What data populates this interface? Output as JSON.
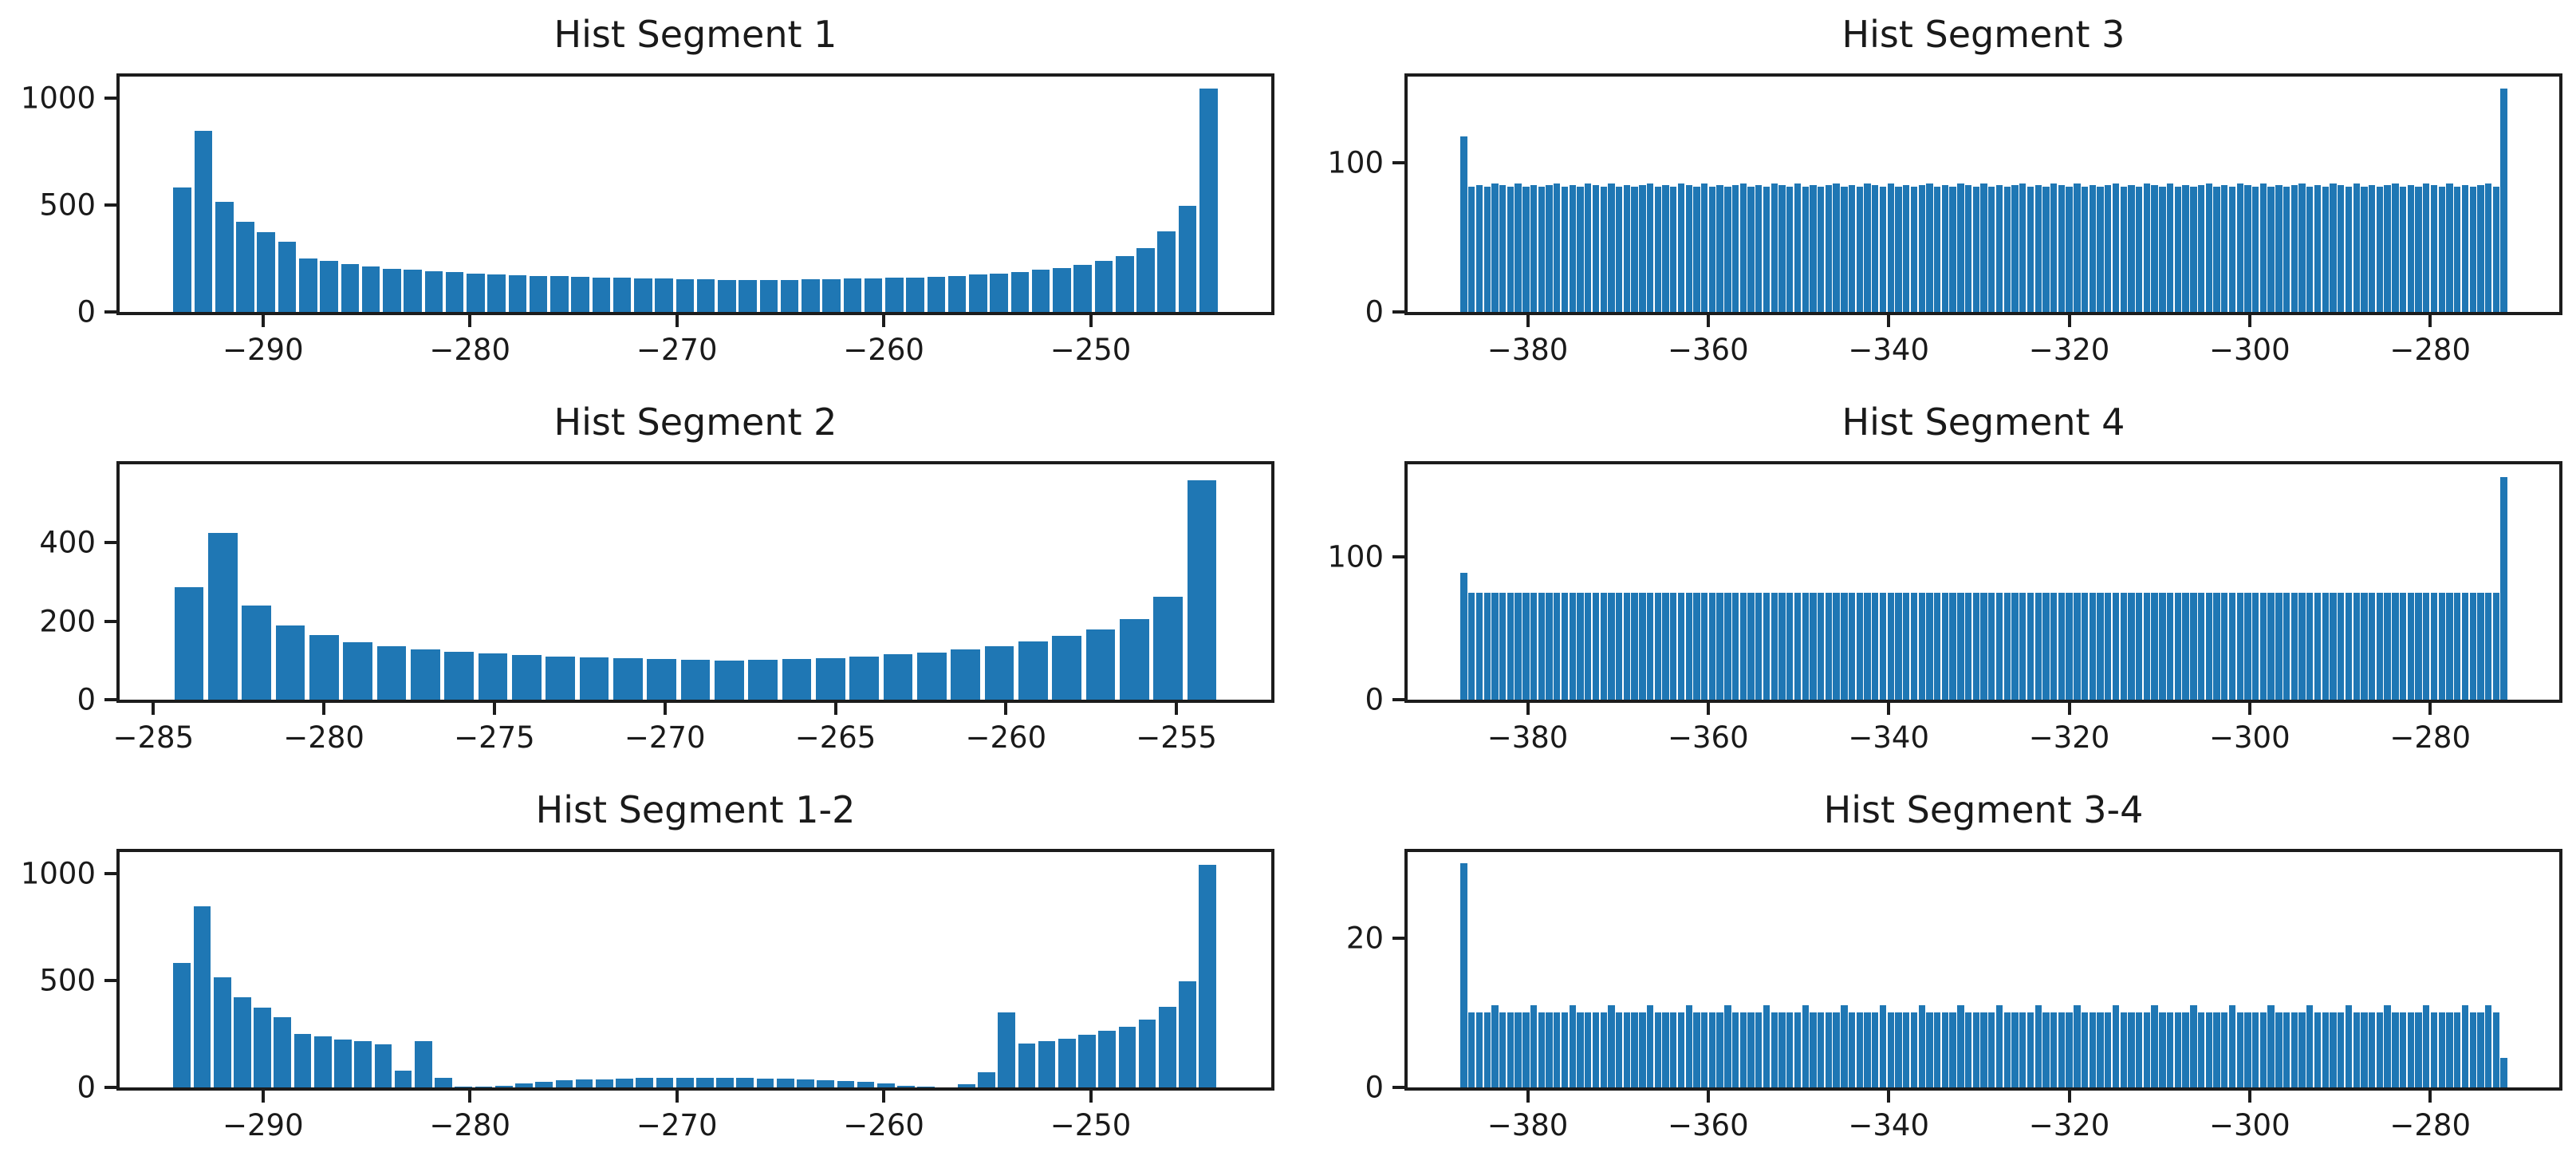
{
  "figure": {
    "background": "#ffffff",
    "bar_color": "#1f77b4",
    "spine_color": "#1c1c1c",
    "text_color": "#1a1a1a"
  },
  "chart_data": [
    {
      "type": "bar",
      "title": "Hist Segment 1",
      "xlabel": "",
      "ylabel": "",
      "grid": false,
      "legend": null,
      "bin_start": -294.4,
      "bin_width": 1.012,
      "values": [
        583,
        846,
        514,
        423,
        372,
        327,
        250,
        237,
        222,
        212,
        203,
        196,
        190,
        185,
        180,
        176,
        172,
        169,
        166,
        163,
        161,
        159,
        157,
        155,
        154,
        152,
        151,
        150,
        150,
        151,
        152,
        153,
        155,
        157,
        159,
        162,
        165,
        169,
        174,
        180,
        187,
        196,
        207,
        221,
        238,
        262,
        300,
        375,
        495,
        1045
      ],
      "xlim": [
        -296.93,
        -241.27
      ],
      "ylim": [
        0,
        1100
      ],
      "xticks": [
        {
          "v": -290,
          "label": "−290"
        },
        {
          "v": -280,
          "label": "−280"
        },
        {
          "v": -270,
          "label": "−270"
        },
        {
          "v": -260,
          "label": "−260"
        },
        {
          "v": -250,
          "label": "−250"
        }
      ],
      "yticks": [
        {
          "v": 0,
          "label": "0"
        },
        {
          "v": 500,
          "label": "500"
        },
        {
          "v": 1000,
          "label": "1000"
        }
      ]
    },
    {
      "type": "bar",
      "title": "Hist Segment 3",
      "xlabel": "",
      "ylabel": "",
      "grid": false,
      "legend": null,
      "bin_start": -387.5,
      "bin_width": 0.86,
      "values": [
        118,
        84,
        85,
        84,
        86,
        85,
        84,
        86,
        84,
        85,
        84,
        85,
        86,
        84,
        85,
        84,
        86,
        85,
        84,
        86,
        84,
        85,
        84,
        85,
        86,
        84,
        85,
        84,
        86,
        85,
        84,
        86,
        84,
        85,
        84,
        85,
        86,
        84,
        85,
        84,
        86,
        85,
        84,
        86,
        84,
        85,
        84,
        85,
        86,
        84,
        85,
        84,
        86,
        85,
        84,
        86,
        84,
        85,
        84,
        85,
        86,
        84,
        85,
        84,
        86,
        85,
        84,
        86,
        84,
        85,
        84,
        85,
        86,
        84,
        85,
        84,
        86,
        85,
        84,
        86,
        84,
        85,
        84,
        85,
        86,
        84,
        85,
        84,
        86,
        85,
        84,
        86,
        84,
        85,
        84,
        85,
        86,
        84,
        85,
        84,
        86,
        85,
        84,
        86,
        84,
        85,
        84,
        85,
        86,
        84,
        85,
        84,
        86,
        85,
        84,
        86,
        84,
        85,
        84,
        85,
        86,
        84,
        85,
        84,
        86,
        85,
        84,
        86,
        84,
        85,
        84,
        85,
        86,
        84,
        150
      ],
      "xlim": [
        -393.3,
        -265.7
      ],
      "ylim": [
        0,
        158
      ],
      "xticks": [
        {
          "v": -380,
          "label": "−380"
        },
        {
          "v": -360,
          "label": "−360"
        },
        {
          "v": -340,
          "label": "−340"
        },
        {
          "v": -320,
          "label": "−320"
        },
        {
          "v": -300,
          "label": "−300"
        },
        {
          "v": -280,
          "label": "−280"
        }
      ],
      "yticks": [
        {
          "v": 0,
          "label": "0"
        },
        {
          "v": 100,
          "label": "100"
        }
      ]
    },
    {
      "type": "bar",
      "title": "Hist Segment 2",
      "xlabel": "",
      "ylabel": "",
      "grid": false,
      "legend": null,
      "bin_start": -284.45,
      "bin_width": 0.99,
      "values": [
        286,
        426,
        240,
        190,
        164,
        147,
        137,
        129,
        122,
        117,
        113,
        110,
        107,
        105,
        103,
        101,
        100,
        101,
        103,
        106,
        110,
        115,
        121,
        128,
        137,
        148,
        162,
        180,
        205,
        262,
        560
      ],
      "xlim": [
        -285.99,
        -252.22
      ],
      "ylim": [
        0,
        600
      ],
      "xticks": [
        {
          "v": -285,
          "label": "−285"
        },
        {
          "v": -280,
          "label": "−280"
        },
        {
          "v": -275,
          "label": "−275"
        },
        {
          "v": -270,
          "label": "−270"
        },
        {
          "v": -265,
          "label": "−265"
        },
        {
          "v": -260,
          "label": "−260"
        },
        {
          "v": -255,
          "label": "−255"
        }
      ],
      "yticks": [
        {
          "v": 0,
          "label": "0"
        },
        {
          "v": 200,
          "label": "200"
        },
        {
          "v": 400,
          "label": "400"
        }
      ]
    },
    {
      "type": "bar",
      "title": "Hist Segment 4",
      "xlabel": "",
      "ylabel": "",
      "grid": false,
      "legend": null,
      "bin_start": -387.5,
      "bin_width": 0.86,
      "values": [
        89,
        75,
        75,
        75,
        75,
        75,
        75,
        75,
        75,
        75,
        75,
        75,
        75,
        75,
        75,
        75,
        75,
        75,
        75,
        75,
        75,
        75,
        75,
        75,
        75,
        75,
        75,
        75,
        75,
        75,
        75,
        75,
        75,
        75,
        75,
        75,
        75,
        75,
        75,
        75,
        75,
        75,
        75,
        75,
        75,
        75,
        75,
        75,
        75,
        75,
        75,
        75,
        75,
        75,
        75,
        75,
        75,
        75,
        75,
        75,
        75,
        75,
        75,
        75,
        75,
        75,
        75,
        75,
        75,
        75,
        75,
        75,
        75,
        75,
        75,
        75,
        75,
        75,
        75,
        75,
        75,
        75,
        75,
        75,
        75,
        75,
        75,
        75,
        75,
        75,
        75,
        75,
        75,
        75,
        75,
        75,
        75,
        75,
        75,
        75,
        75,
        75,
        75,
        75,
        75,
        75,
        75,
        75,
        75,
        75,
        75,
        75,
        75,
        75,
        75,
        75,
        75,
        75,
        75,
        75,
        75,
        75,
        75,
        75,
        75,
        75,
        75,
        75,
        75,
        75,
        75,
        75,
        75,
        75,
        156
      ],
      "xlim": [
        -393.3,
        -265.7
      ],
      "ylim": [
        0,
        165
      ],
      "xticks": [
        {
          "v": -380,
          "label": "−380"
        },
        {
          "v": -360,
          "label": "−360"
        },
        {
          "v": -340,
          "label": "−340"
        },
        {
          "v": -320,
          "label": "−320"
        },
        {
          "v": -300,
          "label": "−300"
        },
        {
          "v": -280,
          "label": "−280"
        }
      ],
      "yticks": [
        {
          "v": 0,
          "label": "0"
        },
        {
          "v": 100,
          "label": "100"
        }
      ]
    },
    {
      "type": "bar",
      "title": "Hist Segment 1-2",
      "xlabel": "",
      "ylabel": "",
      "grid": false,
      "legend": null,
      "bin_start": -294.4,
      "bin_width": 0.972,
      "values": [
        583,
        846,
        514,
        423,
        372,
        330,
        250,
        237,
        222,
        215,
        202,
        78,
        215,
        45,
        5,
        2,
        8,
        18,
        26,
        32,
        36,
        39,
        41,
        43,
        44,
        45,
        45,
        44,
        43,
        42,
        40,
        38,
        35,
        31,
        26,
        18,
        8,
        2,
        0,
        15,
        70,
        350,
        206,
        217,
        229,
        245,
        263,
        285,
        318,
        376,
        496,
        1040
      ],
      "xlim": [
        -296.93,
        -241.27
      ],
      "ylim": [
        0,
        1100
      ],
      "xticks": [
        {
          "v": -290,
          "label": "−290"
        },
        {
          "v": -280,
          "label": "−280"
        },
        {
          "v": -270,
          "label": "−270"
        },
        {
          "v": -260,
          "label": "−260"
        },
        {
          "v": -250,
          "label": "−250"
        }
      ],
      "yticks": [
        {
          "v": 0,
          "label": "0"
        },
        {
          "v": 500,
          "label": "500"
        },
        {
          "v": 1000,
          "label": "1000"
        }
      ]
    },
    {
      "type": "bar",
      "title": "Hist Segment 3-4",
      "xlabel": "",
      "ylabel": "",
      "grid": false,
      "legend": null,
      "bin_start": -387.5,
      "bin_width": 0.86,
      "values": [
        30,
        10,
        10,
        10,
        11,
        10,
        10,
        10,
        10,
        11,
        10,
        10,
        10,
        10,
        11,
        10,
        10,
        10,
        10,
        11,
        10,
        10,
        10,
        10,
        11,
        10,
        10,
        10,
        10,
        11,
        10,
        10,
        10,
        10,
        11,
        10,
        10,
        10,
        10,
        11,
        10,
        10,
        10,
        10,
        11,
        10,
        10,
        10,
        10,
        11,
        10,
        10,
        10,
        10,
        11,
        10,
        10,
        10,
        10,
        11,
        10,
        10,
        10,
        10,
        11,
        10,
        10,
        10,
        10,
        11,
        10,
        10,
        10,
        10,
        11,
        10,
        10,
        10,
        10,
        11,
        10,
        10,
        10,
        10,
        11,
        10,
        10,
        10,
        10,
        11,
        10,
        10,
        10,
        10,
        11,
        10,
        10,
        10,
        10,
        11,
        10,
        10,
        10,
        10,
        11,
        10,
        10,
        10,
        10,
        11,
        10,
        10,
        10,
        10,
        11,
        10,
        10,
        10,
        10,
        11,
        10,
        10,
        10,
        10,
        11,
        10,
        10,
        10,
        10,
        11,
        10,
        10,
        11,
        10,
        4
      ],
      "xlim": [
        -393.3,
        -265.7
      ],
      "ylim": [
        0,
        31.5
      ],
      "xticks": [
        {
          "v": -380,
          "label": "−380"
        },
        {
          "v": -360,
          "label": "−360"
        },
        {
          "v": -340,
          "label": "−340"
        },
        {
          "v": -320,
          "label": "−320"
        },
        {
          "v": -300,
          "label": "−300"
        },
        {
          "v": -280,
          "label": "−280"
        }
      ],
      "yticks": [
        {
          "v": 0,
          "label": "0"
        },
        {
          "v": 20,
          "label": "20"
        }
      ]
    }
  ]
}
